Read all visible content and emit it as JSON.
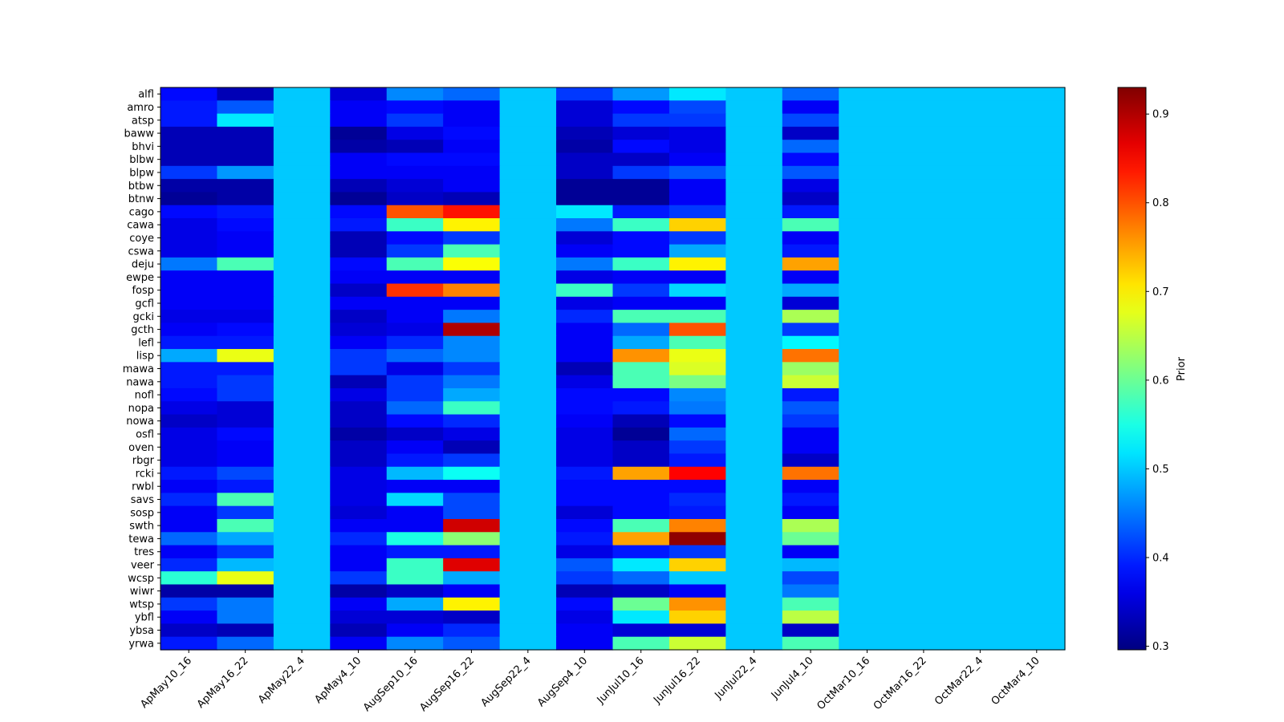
{
  "chart_data": {
    "type": "heatmap",
    "title": "",
    "xlabel": "",
    "ylabel": "",
    "colormap": "jet",
    "colorbar": {
      "label": "Prior",
      "range": [
        0.296,
        0.93
      ],
      "ticks": [
        0.3,
        0.4,
        0.5,
        0.6,
        0.7,
        0.8,
        0.9
      ],
      "tick_labels": [
        "0.3",
        "0.4",
        "0.5",
        "0.6",
        "0.7",
        "0.8",
        "0.9"
      ]
    },
    "columns": [
      "ApMay10_16",
      "ApMay16_22",
      "ApMay22_4",
      "ApMay4_10",
      "AugSep10_16",
      "AugSep16_22",
      "AugSep22_4",
      "AugSep4_10",
      "JunJul10_16",
      "JunJul16_22",
      "JunJul22_4",
      "JunJul4_10",
      "OctMar10_16",
      "OctMar16_22",
      "OctMar22_4",
      "OctMar4_10"
    ],
    "rows": [
      "alfl",
      "amro",
      "atsp",
      "baww",
      "bhvi",
      "blbw",
      "blpw",
      "btbw",
      "btnw",
      "cago",
      "cawa",
      "coye",
      "cswa",
      "deju",
      "ewpe",
      "fosp",
      "gcfl",
      "gcki",
      "gcth",
      "lefl",
      "lisp",
      "mawa",
      "nawa",
      "nofl",
      "nopa",
      "nowa",
      "osfl",
      "oven",
      "rbgr",
      "rcki",
      "rwbl",
      "savs",
      "sosp",
      "swth",
      "tewa",
      "tres",
      "veer",
      "wcsp",
      "wiwr",
      "wtsp",
      "ybfl",
      "ybsa",
      "yrwa"
    ],
    "values": [
      [
        0.38,
        0.33,
        0.5,
        0.35,
        0.46,
        0.44,
        0.5,
        0.41,
        0.47,
        0.52,
        0.5,
        0.44,
        0.5,
        0.5,
        0.5,
        0.5
      ],
      [
        0.39,
        0.43,
        0.5,
        0.37,
        0.38,
        0.37,
        0.5,
        0.35,
        0.38,
        0.42,
        0.5,
        0.37,
        0.5,
        0.5,
        0.5,
        0.5
      ],
      [
        0.39,
        0.52,
        0.5,
        0.37,
        0.41,
        0.37,
        0.5,
        0.35,
        0.41,
        0.41,
        0.5,
        0.42,
        0.5,
        0.5,
        0.5,
        0.5
      ],
      [
        0.33,
        0.33,
        0.5,
        0.31,
        0.36,
        0.38,
        0.5,
        0.33,
        0.35,
        0.36,
        0.5,
        0.34,
        0.5,
        0.5,
        0.5,
        0.5
      ],
      [
        0.33,
        0.33,
        0.5,
        0.32,
        0.33,
        0.37,
        0.5,
        0.32,
        0.38,
        0.36,
        0.5,
        0.44,
        0.5,
        0.5,
        0.5,
        0.5
      ],
      [
        0.33,
        0.33,
        0.5,
        0.37,
        0.38,
        0.38,
        0.5,
        0.34,
        0.34,
        0.37,
        0.5,
        0.38,
        0.5,
        0.5,
        0.5,
        0.5
      ],
      [
        0.41,
        0.47,
        0.5,
        0.37,
        0.37,
        0.37,
        0.5,
        0.34,
        0.41,
        0.43,
        0.5,
        0.43,
        0.5,
        0.5,
        0.5,
        0.5
      ],
      [
        0.32,
        0.32,
        0.5,
        0.33,
        0.35,
        0.37,
        0.5,
        0.31,
        0.31,
        0.37,
        0.5,
        0.36,
        0.5,
        0.5,
        0.5,
        0.5
      ],
      [
        0.31,
        0.32,
        0.5,
        0.31,
        0.34,
        0.33,
        0.5,
        0.31,
        0.31,
        0.37,
        0.5,
        0.34,
        0.5,
        0.5,
        0.5,
        0.5
      ],
      [
        0.38,
        0.39,
        0.5,
        0.38,
        0.8,
        0.84,
        0.5,
        0.52,
        0.39,
        0.41,
        0.5,
        0.39,
        0.5,
        0.5,
        0.5,
        0.5
      ],
      [
        0.36,
        0.38,
        0.5,
        0.39,
        0.57,
        0.7,
        0.5,
        0.45,
        0.57,
        0.72,
        0.5,
        0.58,
        0.5,
        0.5,
        0.5,
        0.5
      ],
      [
        0.36,
        0.37,
        0.5,
        0.33,
        0.38,
        0.41,
        0.5,
        0.35,
        0.38,
        0.41,
        0.5,
        0.37,
        0.5,
        0.5,
        0.5,
        0.5
      ],
      [
        0.36,
        0.37,
        0.5,
        0.33,
        0.41,
        0.58,
        0.5,
        0.37,
        0.38,
        0.48,
        0.5,
        0.39,
        0.5,
        0.5,
        0.5,
        0.5
      ],
      [
        0.45,
        0.58,
        0.5,
        0.38,
        0.58,
        0.69,
        0.5,
        0.45,
        0.57,
        0.7,
        0.5,
        0.75,
        0.5,
        0.5,
        0.5,
        0.5
      ],
      [
        0.37,
        0.37,
        0.5,
        0.37,
        0.37,
        0.37,
        0.5,
        0.36,
        0.37,
        0.37,
        0.5,
        0.37,
        0.5,
        0.5,
        0.5,
        0.5
      ],
      [
        0.37,
        0.37,
        0.5,
        0.34,
        0.82,
        0.77,
        0.5,
        0.57,
        0.41,
        0.51,
        0.5,
        0.48,
        0.5,
        0.5,
        0.5,
        0.5
      ],
      [
        0.37,
        0.37,
        0.5,
        0.37,
        0.37,
        0.37,
        0.5,
        0.36,
        0.37,
        0.37,
        0.5,
        0.35,
        0.5,
        0.5,
        0.5,
        0.5
      ],
      [
        0.36,
        0.36,
        0.5,
        0.34,
        0.37,
        0.45,
        0.5,
        0.4,
        0.58,
        0.58,
        0.5,
        0.64,
        0.5,
        0.5,
        0.5,
        0.5
      ],
      [
        0.37,
        0.38,
        0.5,
        0.35,
        0.36,
        0.9,
        0.5,
        0.37,
        0.44,
        0.8,
        0.5,
        0.41,
        0.5,
        0.5,
        0.5,
        0.5
      ],
      [
        0.39,
        0.39,
        0.5,
        0.37,
        0.4,
        0.46,
        0.5,
        0.37,
        0.48,
        0.58,
        0.5,
        0.53,
        0.5,
        0.5,
        0.5,
        0.5
      ],
      [
        0.48,
        0.68,
        0.5,
        0.41,
        0.44,
        0.46,
        0.5,
        0.37,
        0.76,
        0.68,
        0.5,
        0.78,
        0.5,
        0.5,
        0.5,
        0.5
      ],
      [
        0.39,
        0.39,
        0.5,
        0.41,
        0.36,
        0.41,
        0.5,
        0.33,
        0.58,
        0.67,
        0.5,
        0.63,
        0.5,
        0.5,
        0.5,
        0.5
      ],
      [
        0.39,
        0.41,
        0.5,
        0.33,
        0.41,
        0.45,
        0.5,
        0.36,
        0.58,
        0.61,
        0.5,
        0.66,
        0.5,
        0.5,
        0.5,
        0.5
      ],
      [
        0.38,
        0.41,
        0.5,
        0.36,
        0.41,
        0.48,
        0.5,
        0.38,
        0.38,
        0.46,
        0.5,
        0.39,
        0.5,
        0.5,
        0.5,
        0.5
      ],
      [
        0.36,
        0.35,
        0.5,
        0.34,
        0.44,
        0.57,
        0.5,
        0.38,
        0.39,
        0.45,
        0.5,
        0.43,
        0.5,
        0.5,
        0.5,
        0.5
      ],
      [
        0.34,
        0.35,
        0.5,
        0.34,
        0.38,
        0.4,
        0.5,
        0.37,
        0.33,
        0.38,
        0.5,
        0.41,
        0.5,
        0.5,
        0.5,
        0.5
      ],
      [
        0.36,
        0.38,
        0.5,
        0.32,
        0.34,
        0.36,
        0.5,
        0.36,
        0.31,
        0.44,
        0.5,
        0.37,
        0.5,
        0.5,
        0.5,
        0.5
      ],
      [
        0.36,
        0.37,
        0.5,
        0.34,
        0.37,
        0.33,
        0.5,
        0.36,
        0.34,
        0.41,
        0.5,
        0.37,
        0.5,
        0.5,
        0.5,
        0.5
      ],
      [
        0.36,
        0.37,
        0.5,
        0.34,
        0.39,
        0.41,
        0.5,
        0.36,
        0.34,
        0.39,
        0.5,
        0.34,
        0.5,
        0.5,
        0.5,
        0.5
      ],
      [
        0.39,
        0.42,
        0.5,
        0.36,
        0.49,
        0.54,
        0.5,
        0.39,
        0.75,
        0.85,
        0.5,
        0.78,
        0.5,
        0.5,
        0.5,
        0.5
      ],
      [
        0.37,
        0.39,
        0.5,
        0.36,
        0.37,
        0.37,
        0.5,
        0.38,
        0.38,
        0.38,
        0.5,
        0.37,
        0.5,
        0.5,
        0.5,
        0.5
      ],
      [
        0.4,
        0.58,
        0.5,
        0.36,
        0.51,
        0.42,
        0.5,
        0.38,
        0.38,
        0.4,
        0.5,
        0.39,
        0.5,
        0.5,
        0.5,
        0.5
      ],
      [
        0.37,
        0.41,
        0.5,
        0.35,
        0.37,
        0.42,
        0.5,
        0.35,
        0.38,
        0.39,
        0.5,
        0.37,
        0.5,
        0.5,
        0.5,
        0.5
      ],
      [
        0.37,
        0.58,
        0.5,
        0.37,
        0.37,
        0.88,
        0.5,
        0.38,
        0.58,
        0.77,
        0.5,
        0.64,
        0.5,
        0.5,
        0.5,
        0.5
      ],
      [
        0.44,
        0.48,
        0.5,
        0.4,
        0.55,
        0.62,
        0.5,
        0.39,
        0.75,
        0.92,
        0.5,
        0.6,
        0.5,
        0.5,
        0.5,
        0.5
      ],
      [
        0.37,
        0.41,
        0.5,
        0.37,
        0.39,
        0.39,
        0.5,
        0.36,
        0.39,
        0.41,
        0.5,
        0.37,
        0.5,
        0.5,
        0.5,
        0.5
      ],
      [
        0.4,
        0.49,
        0.5,
        0.37,
        0.57,
        0.87,
        0.5,
        0.43,
        0.52,
        0.72,
        0.5,
        0.49,
        0.5,
        0.5,
        0.5,
        0.5
      ],
      [
        0.56,
        0.68,
        0.5,
        0.41,
        0.57,
        0.48,
        0.5,
        0.41,
        0.44,
        0.5,
        0.5,
        0.42,
        0.5,
        0.5,
        0.5,
        0.5
      ],
      [
        0.32,
        0.32,
        0.5,
        0.32,
        0.34,
        0.37,
        0.5,
        0.33,
        0.34,
        0.37,
        0.5,
        0.45,
        0.5,
        0.5,
        0.5,
        0.5
      ],
      [
        0.41,
        0.45,
        0.5,
        0.37,
        0.48,
        0.7,
        0.5,
        0.38,
        0.6,
        0.76,
        0.5,
        0.58,
        0.5,
        0.5,
        0.5,
        0.5
      ],
      [
        0.37,
        0.45,
        0.5,
        0.35,
        0.35,
        0.34,
        0.5,
        0.36,
        0.52,
        0.72,
        0.5,
        0.65,
        0.5,
        0.5,
        0.5,
        0.5
      ],
      [
        0.34,
        0.33,
        0.5,
        0.33,
        0.37,
        0.4,
        0.5,
        0.37,
        0.35,
        0.35,
        0.5,
        0.34,
        0.5,
        0.5,
        0.5,
        0.5
      ],
      [
        0.39,
        0.44,
        0.5,
        0.37,
        0.46,
        0.43,
        0.5,
        0.37,
        0.58,
        0.66,
        0.5,
        0.58,
        0.5,
        0.5,
        0.5,
        0.5
      ]
    ]
  }
}
